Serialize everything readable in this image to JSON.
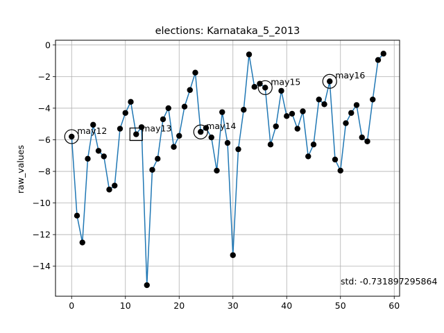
{
  "chart_data": {
    "type": "line",
    "title": "elections: Karnataka_5_2013",
    "xlabel": "",
    "ylabel": "raw_values",
    "xlim": [
      -3,
      61
    ],
    "ylim": [
      -15.9,
      0.3
    ],
    "grid": true,
    "x_ticks": [
      {
        "value": 0,
        "label": "0"
      },
      {
        "value": 10,
        "label": "10"
      },
      {
        "value": 20,
        "label": "20"
      },
      {
        "value": 30,
        "label": "30"
      },
      {
        "value": 40,
        "label": "40"
      },
      {
        "value": 50,
        "label": "50"
      },
      {
        "value": 60,
        "label": "60"
      }
    ],
    "y_ticks": [
      {
        "value": 0,
        "label": "0"
      },
      {
        "value": -2,
        "label": "−2"
      },
      {
        "value": -4,
        "label": "−4"
      },
      {
        "value": -6,
        "label": "−6"
      },
      {
        "value": -8,
        "label": "−8"
      },
      {
        "value": -10,
        "label": "−10"
      },
      {
        "value": -12,
        "label": "−12"
      },
      {
        "value": -14,
        "label": "−14"
      }
    ],
    "series": [
      {
        "line_color": "#1f77b4",
        "marker_color": "#000000",
        "x": [
          0,
          1,
          2,
          3,
          4,
          5,
          6,
          7,
          8,
          9,
          10,
          11,
          12,
          13,
          14,
          15,
          16,
          17,
          18,
          19,
          20,
          21,
          22,
          23,
          24,
          25,
          26,
          27,
          28,
          29,
          30,
          31,
          32,
          33,
          34,
          35,
          36,
          37,
          38,
          39,
          40,
          41,
          42,
          43,
          44,
          45,
          46,
          47,
          48,
          49,
          50,
          51,
          52,
          53,
          54,
          55,
          56,
          57,
          58
        ],
        "y": [
          -5.8,
          -10.8,
          -12.5,
          -7.2,
          -5.05,
          -6.7,
          -7.05,
          -9.15,
          -8.9,
          -5.3,
          -4.3,
          -3.6,
          -5.65,
          -5.2,
          -15.2,
          -7.9,
          -7.2,
          -4.7,
          -4.0,
          -6.45,
          -5.75,
          -3.9,
          -2.85,
          -1.75,
          -5.5,
          -5.25,
          -5.85,
          -7.95,
          -4.25,
          -6.2,
          -13.3,
          -6.6,
          -4.1,
          -0.6,
          -2.65,
          -2.45,
          -2.7,
          -6.3,
          -5.15,
          -2.9,
          -4.5,
          -4.35,
          -5.3,
          -4.2,
          -7.05,
          -6.3,
          -3.45,
          -3.75,
          -2.3,
          -7.25,
          -7.95,
          -4.95,
          -4.3,
          -3.8,
          -5.85,
          -6.1,
          -3.45,
          -0.95,
          -0.55
        ]
      }
    ],
    "annotations": [
      {
        "x": 0,
        "y": -5.8,
        "label": "may12",
        "marker": "circle"
      },
      {
        "x": 12,
        "y": -5.65,
        "label": "may13",
        "marker": "square"
      },
      {
        "x": 24,
        "y": -5.5,
        "label": "may14",
        "marker": "circle"
      },
      {
        "x": 36,
        "y": -2.7,
        "label": "may15",
        "marker": "circle"
      },
      {
        "x": 48,
        "y": -2.3,
        "label": "may16",
        "marker": "circle"
      }
    ],
    "footnote": "std: -0.731897295864"
  }
}
